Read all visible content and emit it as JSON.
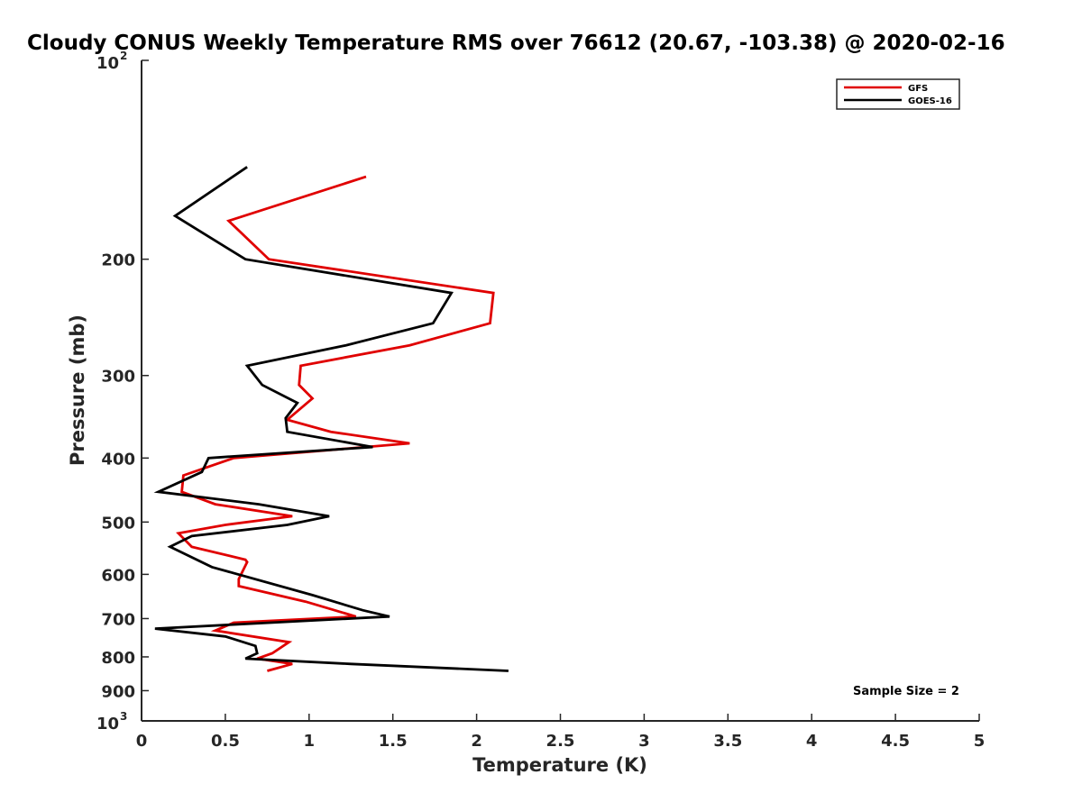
{
  "chart_data": {
    "type": "line",
    "title": "Cloudy CONUS Weekly Temperature RMS over 76612 (20.67, -103.38) @ 2020-02-16",
    "xlabel": "Temperature (K)",
    "ylabel": "Pressure (mb)",
    "xlim": [
      0,
      5
    ],
    "ylim": [
      100,
      1000
    ],
    "y_scale": "log",
    "y_reversed": true,
    "grid": false,
    "legend_position": "top-right",
    "x_ticks": [
      "0",
      "0.5",
      "1",
      "1.5",
      "2",
      "2.5",
      "3",
      "3.5",
      "4",
      "4.5",
      "5"
    ],
    "y_ticks": [
      {
        "value": 100,
        "base": "10",
        "exp": "2"
      },
      {
        "value": 200,
        "label": "200"
      },
      {
        "value": 300,
        "label": "300"
      },
      {
        "value": 400,
        "label": "400"
      },
      {
        "value": 500,
        "label": "500"
      },
      {
        "value": 600,
        "label": "600"
      },
      {
        "value": 700,
        "label": "700"
      },
      {
        "value": 800,
        "label": "800"
      },
      {
        "value": 900,
        "label": "900"
      },
      {
        "value": 1000,
        "base": "10",
        "exp": "3"
      }
    ],
    "series": [
      {
        "name": "GFS",
        "color": "#e00000",
        "points": [
          [
            1.34,
            150
          ],
          [
            0.52,
            175
          ],
          [
            0.76,
            200
          ],
          [
            2.1,
            225
          ],
          [
            2.08,
            250
          ],
          [
            1.6,
            270
          ],
          [
            0.95,
            290
          ],
          [
            0.94,
            310
          ],
          [
            1.02,
            325
          ],
          [
            0.87,
            350
          ],
          [
            1.13,
            365
          ],
          [
            1.6,
            380
          ],
          [
            0.55,
            400
          ],
          [
            0.25,
            425
          ],
          [
            0.24,
            450
          ],
          [
            0.44,
            470
          ],
          [
            0.9,
            490
          ],
          [
            0.5,
            505
          ],
          [
            0.22,
            520
          ],
          [
            0.3,
            545
          ],
          [
            0.62,
            570
          ],
          [
            0.63,
            575
          ],
          [
            0.58,
            610
          ],
          [
            0.58,
            625
          ],
          [
            0.98,
            660
          ],
          [
            1.28,
            695
          ],
          [
            0.55,
            710
          ],
          [
            0.44,
            730
          ],
          [
            0.88,
            760
          ],
          [
            0.78,
            790
          ],
          [
            0.69,
            805
          ],
          [
            0.9,
            820
          ],
          [
            0.75,
            840
          ]
        ]
      },
      {
        "name": "GOES-16",
        "color": "#000000",
        "points": [
          [
            0.63,
            145
          ],
          [
            0.2,
            172
          ],
          [
            0.62,
            200
          ],
          [
            1.85,
            225
          ],
          [
            1.74,
            250
          ],
          [
            1.22,
            270
          ],
          [
            0.63,
            290
          ],
          [
            0.72,
            310
          ],
          [
            0.93,
            330
          ],
          [
            0.86,
            348
          ],
          [
            0.87,
            365
          ],
          [
            1.38,
            385
          ],
          [
            0.4,
            400
          ],
          [
            0.36,
            420
          ],
          [
            0.1,
            450
          ],
          [
            0.7,
            470
          ],
          [
            1.12,
            490
          ],
          [
            0.87,
            505
          ],
          [
            0.3,
            525
          ],
          [
            0.17,
            545
          ],
          [
            0.42,
            585
          ],
          [
            1.02,
            645
          ],
          [
            1.32,
            680
          ],
          [
            1.48,
            695
          ],
          [
            0.08,
            725
          ],
          [
            0.5,
            745
          ],
          [
            0.68,
            770
          ],
          [
            0.69,
            790
          ],
          [
            0.62,
            805
          ],
          [
            1.25,
            820
          ],
          [
            2.19,
            840
          ]
        ]
      }
    ],
    "annotation": "Sample Size = 2"
  }
}
